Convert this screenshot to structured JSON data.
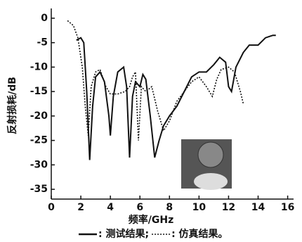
{
  "chart_data": {
    "type": "line",
    "xlabel": "频率/GHz",
    "ylabel": "反射损耗/dB",
    "xlim": [
      0,
      16.4
    ],
    "ylim": [
      -37,
      2
    ],
    "xticks": [
      0,
      2,
      4,
      6,
      8,
      10,
      12,
      14,
      16
    ],
    "yticks": [
      0,
      -5,
      -10,
      -15,
      -20,
      -25,
      -30,
      -35
    ],
    "grid": false,
    "series": [
      {
        "name": ": 测试结果;",
        "color": "#111111",
        "dash": "solid",
        "x": [
          1.7,
          2.0,
          2.2,
          2.4,
          2.6,
          2.8,
          3.0,
          3.3,
          3.6,
          3.9,
          4.0,
          4.2,
          4.5,
          4.9,
          5.1,
          5.3,
          5.5,
          5.7,
          6.0,
          6.2,
          6.4,
          6.7,
          7.0,
          7.3,
          7.6,
          8.0,
          8.5,
          9.0,
          9.5,
          10.0,
          10.5,
          11.0,
          11.4,
          11.8,
          12.0,
          12.2,
          12.5,
          13.0,
          13.4,
          14.0,
          14.5,
          15.0,
          15.2
        ],
        "values": [
          -4.5,
          -4,
          -5,
          -15,
          -29,
          -18,
          -12,
          -11,
          -13,
          -20,
          -24,
          -16,
          -11,
          -10,
          -14,
          -28.5,
          -16,
          -13,
          -14,
          -11.5,
          -12.5,
          -20,
          -28.5,
          -25,
          -22,
          -20,
          -18,
          -15,
          -12,
          -11,
          -11,
          -9.5,
          -8,
          -9,
          -14,
          -15,
          -10,
          -7,
          -5.5,
          -5.5,
          -4,
          -3.5,
          -3.5
        ]
      },
      {
        "name": ": 仿真结果。",
        "color": "#111111",
        "dash": "dotted",
        "x": [
          1.1,
          1.5,
          1.8,
          2.1,
          2.3,
          2.5,
          2.7,
          3.0,
          3.3,
          3.7,
          4.0,
          4.5,
          5.0,
          5.3,
          5.5,
          5.7,
          5.9,
          6.1,
          6.4,
          6.8,
          7.2,
          7.6,
          8.0,
          8.5,
          9.0,
          9.5,
          10.0,
          10.5,
          10.9,
          11.2,
          11.5,
          12.0,
          12.4,
          12.8,
          13.0
        ],
        "values": [
          -0.5,
          -1.5,
          -4,
          -10,
          -18,
          -24,
          -14,
          -11,
          -10.5,
          -14,
          -15.5,
          -15.5,
          -15,
          -14,
          -12,
          -11,
          -25,
          -14,
          -15,
          -14,
          -19,
          -23,
          -21,
          -17,
          -15,
          -13,
          -12,
          -14,
          -16,
          -12.5,
          -10.5,
          -10,
          -11,
          -15,
          -17.5
        ]
      }
    ]
  }
}
